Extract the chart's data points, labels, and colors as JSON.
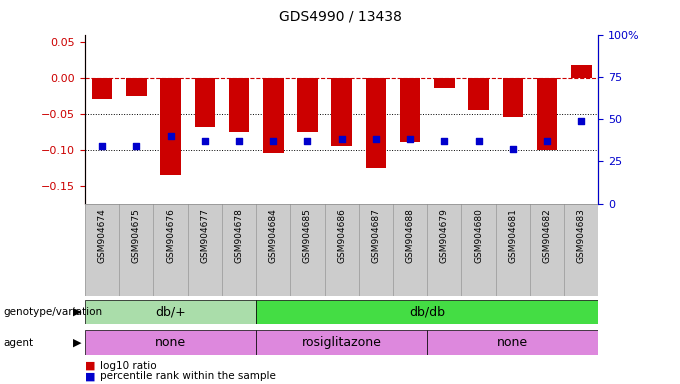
{
  "title": "GDS4990 / 13438",
  "samples": [
    "GSM904674",
    "GSM904675",
    "GSM904676",
    "GSM904677",
    "GSM904678",
    "GSM904684",
    "GSM904685",
    "GSM904686",
    "GSM904687",
    "GSM904688",
    "GSM904679",
    "GSM904680",
    "GSM904681",
    "GSM904682",
    "GSM904683"
  ],
  "log10_ratio": [
    -0.03,
    -0.025,
    -0.135,
    -0.068,
    -0.075,
    -0.105,
    -0.075,
    -0.095,
    -0.125,
    -0.09,
    -0.015,
    -0.045,
    -0.055,
    -0.1,
    0.018
  ],
  "percentile_rank_pct": [
    34,
    34,
    40,
    37,
    37,
    37,
    37,
    38,
    38,
    38,
    37,
    37,
    32,
    37,
    49
  ],
  "bar_color": "#cc0000",
  "dot_color": "#0000cc",
  "ylim_left": [
    -0.175,
    0.06
  ],
  "ylim_right": [
    0,
    100
  ],
  "yticks_left": [
    -0.15,
    -0.1,
    -0.05,
    0,
    0.05
  ],
  "yticks_right": [
    0,
    25,
    50,
    75,
    100
  ],
  "dotted_lines": [
    -0.05,
    -0.1
  ],
  "geno_groups": [
    {
      "label": "db/+",
      "start": 0,
      "end": 4,
      "color": "#aaddaa"
    },
    {
      "label": "db/db",
      "start": 5,
      "end": 14,
      "color": "#44dd44"
    }
  ],
  "agent_groups": [
    {
      "label": "none",
      "start": 0,
      "end": 4,
      "color": "#dd88dd"
    },
    {
      "label": "rosiglitazone",
      "start": 5,
      "end": 9,
      "color": "#dd88dd"
    },
    {
      "label": "none",
      "start": 10,
      "end": 14,
      "color": "#dd88dd"
    }
  ],
  "left_axis_color": "#cc0000",
  "right_axis_color": "#0000cc",
  "dashed_line_color": "#cc0000",
  "legend_red_label": "log10 ratio",
  "legend_blue_label": "percentile rank within the sample"
}
